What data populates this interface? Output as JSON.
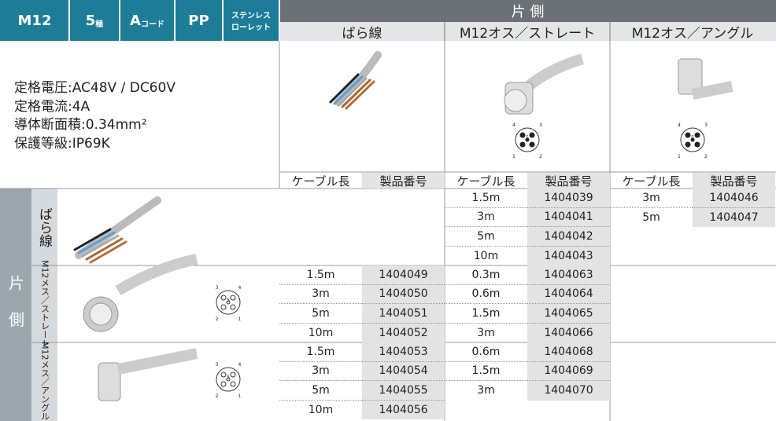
{
  "header": {
    "badges": [
      {
        "main": "M12"
      },
      {
        "main": "5",
        "sub": "極"
      },
      {
        "main": "A",
        "sub": "コード"
      },
      {
        "main": "PP"
      },
      {
        "lines": [
          "ステンレス",
          "ローレット"
        ]
      }
    ],
    "top_label": "片 側",
    "columns": [
      {
        "title": "ばら線",
        "length_label": "ケーブル長",
        "number_label": "製品番号"
      },
      {
        "title": "M12オス／ストレート",
        "length_label": "ケーブル長",
        "number_label": "製品番号"
      },
      {
        "title": "M12オス／アングル",
        "length_label": "ケーブル長",
        "number_label": "製品番号"
      }
    ]
  },
  "specs": [
    "定格電圧:AC48V / DC60V",
    "定格電流:4A",
    "導体断面積:0.34mm²",
    "保護等級:IP69K"
  ],
  "connector_pins": [
    "1",
    "2",
    "3",
    "4",
    "5"
  ],
  "body": {
    "side_label": "片 側",
    "groups": [
      {
        "label": "ばら線",
        "cells": [
          [],
          [
            {
              "length": "1.5m",
              "number": "1404039"
            },
            {
              "length": "3m",
              "number": "1404041"
            },
            {
              "length": "5m",
              "number": "1404042"
            },
            {
              "length": "10m",
              "number": "1404043"
            }
          ],
          [
            {
              "length": "3m",
              "number": "1404046"
            },
            {
              "length": "5m",
              "number": "1404047"
            }
          ]
        ]
      },
      {
        "label": "M12メス／ストレート",
        "cells": [
          [
            {
              "length": "1.5m",
              "number": "1404049"
            },
            {
              "length": "3m",
              "number": "1404050"
            },
            {
              "length": "5m",
              "number": "1404051"
            },
            {
              "length": "10m",
              "number": "1404052"
            }
          ],
          [
            {
              "length": "0.3m",
              "number": "1404063"
            },
            {
              "length": "0.6m",
              "number": "1404064"
            },
            {
              "length": "1.5m",
              "number": "1404065"
            },
            {
              "length": "3m",
              "number": "1404066"
            }
          ],
          []
        ]
      },
      {
        "label": "M12メス／アングル",
        "cells": [
          [
            {
              "length": "1.5m",
              "number": "1404053"
            },
            {
              "length": "3m",
              "number": "1404054"
            },
            {
              "length": "5m",
              "number": "1404055"
            },
            {
              "length": "10m",
              "number": "1404056"
            }
          ],
          [
            {
              "length": "0.6m",
              "number": "1404068"
            },
            {
              "length": "1.5m",
              "number": "1404069"
            },
            {
              "length": "3m",
              "number": "1404070"
            }
          ],
          []
        ]
      }
    ]
  }
}
